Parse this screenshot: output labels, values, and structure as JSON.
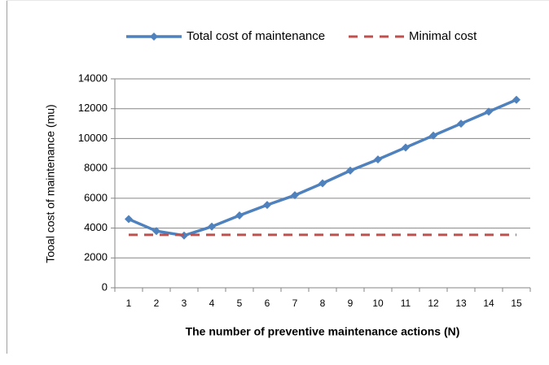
{
  "chart_data": {
    "type": "line",
    "xlabel": "The number of preventive maintenance actions (N)",
    "ylabel": "Tooal cost of maintenance (mu)",
    "categories": [
      "1",
      "2",
      "3",
      "4",
      "5",
      "6",
      "7",
      "8",
      "9",
      "10",
      "11",
      "12",
      "13",
      "14",
      "15"
    ],
    "series": [
      {
        "name": "Total cost of maintenance",
        "color": "#4f81bd",
        "style": "solid",
        "marker": "diamond",
        "values": [
          4600,
          3800,
          3500,
          4100,
          4850,
          5550,
          6200,
          7000,
          7850,
          8600,
          9400,
          10200,
          11000,
          11800,
          12600
        ]
      },
      {
        "name": "Minimal cost",
        "color": "#c0504d",
        "style": "dashed",
        "values": [
          3550,
          3550,
          3550,
          3550,
          3550,
          3550,
          3550,
          3550,
          3550,
          3550,
          3550,
          3550,
          3550,
          3550,
          3550
        ]
      }
    ],
    "ylim": [
      0,
      14000
    ],
    "yticks": [
      0,
      2000,
      4000,
      6000,
      8000,
      10000,
      12000,
      14000
    ],
    "grid": true,
    "legend": "top"
  }
}
